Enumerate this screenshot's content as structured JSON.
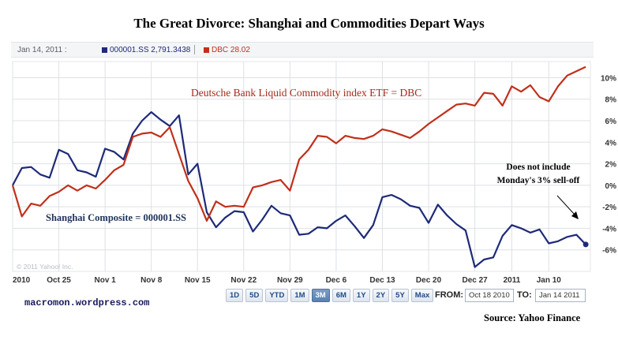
{
  "title": "The Great Divorce:  Shanghai and Commodities Depart Ways",
  "legend": {
    "date": "Jan 14, 2011 :",
    "shanghai": "000001.SS 2,791.3438",
    "dbc": "DBC 28.02"
  },
  "annotations": {
    "dbc": "Deutsche Bank Liquid Commodity index ETF = DBC",
    "shanghai": "Shanghai Composite  =  000001.SS",
    "note_line1": "Does not include",
    "note_line2": "Monday's 3% sell-off"
  },
  "copyright": "© 2011 Yahoo! Inc.",
  "blog": "macromon.wordpress.com",
  "range_buttons": [
    "1D",
    "5D",
    "YTD",
    "1M",
    "3M",
    "6M",
    "1Y",
    "2Y",
    "5Y",
    "Max"
  ],
  "range_active": "3M",
  "from_label": "FROM:",
  "from_value": "Oct 18 2010",
  "to_label": "TO:",
  "to_value": "Jan 14 2011",
  "source": "Source:  Yahoo Finance",
  "colors": {
    "shanghai": "#1e2a78",
    "dbc": "#c0301a",
    "grid": "#dde1e6"
  },
  "chart_data": {
    "type": "line",
    "title": "The Great Divorce:  Shanghai and Commodities Depart Ways",
    "xlabel": "",
    "ylabel": "",
    "ylim": [
      -8,
      11.5
    ],
    "y_ticks": [
      10,
      8,
      6,
      4,
      2,
      0,
      -2,
      -4,
      -6
    ],
    "y_tick_labels": [
      "10%",
      "8%",
      "6%",
      "4%",
      "2%",
      "0%",
      "-2%",
      "-4%",
      "-6%"
    ],
    "x_ticks": [
      "2010",
      "Oct 25",
      "Nov 1",
      "Nov 8",
      "Nov 15",
      "Nov 22",
      "Nov 29",
      "Dec 6",
      "Dec 13",
      "Dec 20",
      "Dec 27",
      "2011",
      "Jan 10"
    ],
    "x_tick_positions": [
      0,
      5,
      10,
      15,
      20,
      25,
      30,
      35,
      40,
      45,
      50,
      54,
      58
    ],
    "x_max": 62.5,
    "series": [
      {
        "name": "000001.SS",
        "color": "#1e2a78",
        "x": [
          0,
          1,
          2,
          3,
          4,
          5,
          6,
          7,
          8,
          9,
          10,
          11,
          12,
          13,
          14,
          15,
          16,
          17,
          18,
          19,
          20,
          21,
          22,
          23,
          24,
          25,
          26,
          27,
          28,
          29,
          30,
          31,
          32,
          33,
          34,
          35,
          36,
          37,
          38,
          39,
          40,
          41,
          42,
          43,
          44,
          45,
          46,
          47,
          48,
          49,
          50,
          51,
          52,
          53,
          54,
          55,
          56,
          57,
          58,
          59,
          60,
          61,
          62
        ],
        "values": [
          0,
          1.6,
          1.7,
          1.0,
          0.7,
          3.3,
          2.9,
          1.4,
          1.2,
          0.8,
          3.4,
          3.1,
          2.4,
          4.8,
          6.0,
          6.8,
          6.1,
          5.5,
          6.5,
          1.0,
          2.0,
          -2.5,
          -3.9,
          -3.0,
          -2.4,
          -2.5,
          -4.3,
          -3.2,
          -1.9,
          -2.6,
          -2.8,
          -4.6,
          -4.5,
          -3.9,
          -4.0,
          -3.3,
          -2.8,
          -3.8,
          -4.9,
          -3.7,
          -1.1,
          -0.9,
          -1.3,
          -1.9,
          -2.1,
          -3.5,
          -1.8,
          -2.8,
          -3.6,
          -4.2,
          -7.6,
          -6.9,
          -6.7,
          -4.7,
          -3.7,
          -4.0,
          -4.4,
          -4.1,
          -5.4,
          -5.2,
          -4.8,
          -4.6,
          -5.5
        ]
      },
      {
        "name": "DBC",
        "color": "#c0301a",
        "x": [
          0,
          1,
          2,
          3,
          4,
          5,
          6,
          7,
          8,
          9,
          10,
          11,
          12,
          13,
          14,
          15,
          16,
          17,
          18,
          19,
          20,
          21,
          22,
          23,
          24,
          25,
          26,
          27,
          28,
          29,
          30,
          31,
          32,
          33,
          34,
          35,
          36,
          37,
          38,
          39,
          40,
          41,
          42,
          43,
          44,
          45,
          46,
          47,
          48,
          49,
          50,
          51,
          52,
          53,
          54,
          55,
          56,
          57,
          58,
          59,
          60,
          61,
          62
        ],
        "values": [
          0,
          -2.9,
          -1.7,
          -1.9,
          -1.0,
          -0.6,
          0.0,
          -0.5,
          0.0,
          -0.3,
          0.5,
          1.4,
          1.9,
          4.5,
          4.8,
          4.9,
          4.5,
          5.4,
          2.9,
          0.4,
          -1.2,
          -3.3,
          -1.5,
          -2.0,
          -1.9,
          -2.0,
          -0.2,
          0.0,
          0.3,
          0.5,
          -0.5,
          2.4,
          3.3,
          4.6,
          4.5,
          3.9,
          4.6,
          4.4,
          4.3,
          4.6,
          5.2,
          5.0,
          4.7,
          4.4,
          5.0,
          5.7,
          6.3,
          6.9,
          7.5,
          7.6,
          7.4,
          8.6,
          8.5,
          7.4,
          9.2,
          8.7,
          9.3,
          8.2,
          7.8,
          9.2,
          10.2,
          10.6,
          11.0
        ]
      }
    ]
  }
}
